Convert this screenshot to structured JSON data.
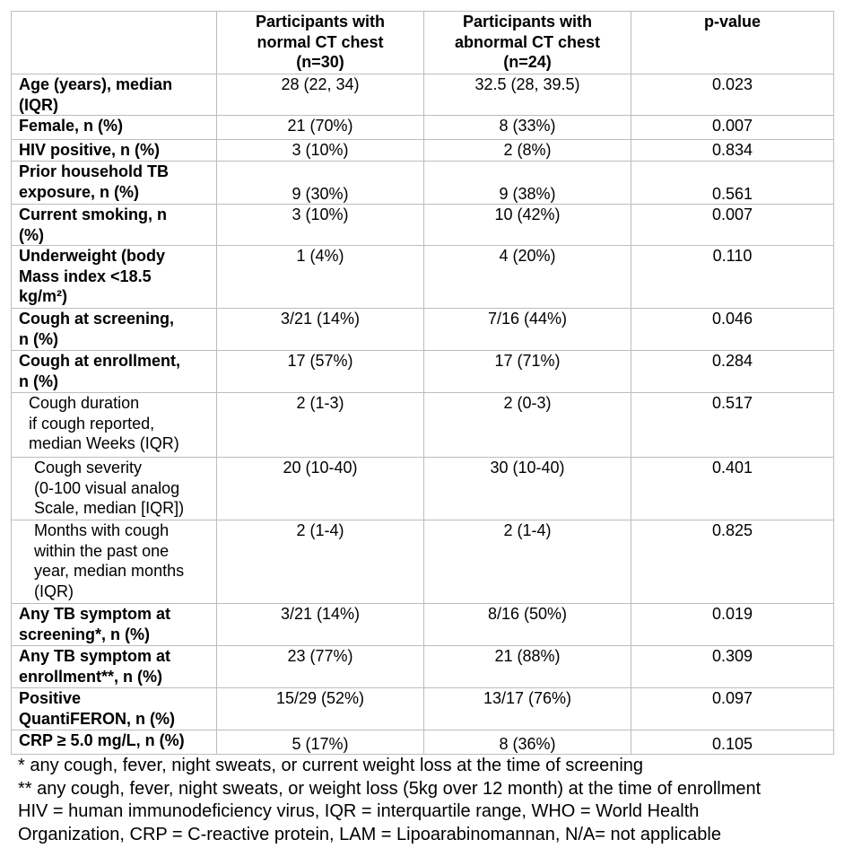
{
  "table": {
    "header": [
      "",
      "Participants with\nnormal CT chest\n(n=30)",
      "Participants with\nabnormal CT chest\n(n=24)",
      "p-value"
    ],
    "rows": [
      [
        "Age (years), median\n(IQR)",
        "28 (22, 34)",
        "32.5 (28, 39.5)",
        "0.023"
      ],
      [
        "Female, n (%)",
        "21 (70%)",
        "8 (33%)",
        "0.007"
      ],
      [
        "HIV positive, n (%)",
        "3 (10%)",
        "2 (8%)",
        "0.834"
      ],
      [
        "Prior household TB\nexposure, n (%)",
        "9 (30%)",
        "9 (38%)",
        "0.561"
      ],
      [
        "Current smoking, n\n(%)",
        "3 (10%)",
        "10 (42%)",
        "0.007"
      ],
      [
        "Underweight (body\nMass index <18.5\nkg/m²)",
        "1 (4%)",
        "4 (20%)",
        "0.110"
      ],
      [
        "Cough at screening,\nn (%)",
        "3/21 (14%)",
        "7/16 (44%)",
        "0.046"
      ],
      [
        "Cough at enrollment,\nn (%)",
        "17 (57%)",
        "17 (71%)",
        "0.284"
      ],
      [
        "Cough duration\nif cough reported,\nmedian Weeks (IQR)",
        "2 (1-3)",
        "2 (0-3)",
        "0.517"
      ],
      [
        "Cough severity\n(0-100 visual analog\nScale, median [IQR])",
        "20 (10-40)",
        "30 (10-40)",
        "0.401"
      ],
      [
        "Months with cough\nwithin the past one\nyear, median months\n(IQR)",
        "2 (1-4)",
        "2 (1-4)",
        "0.825"
      ],
      [
        "Any TB symptom at\nscreening*, n (%)",
        "3/21 (14%)",
        "8/16 (50%)",
        "0.019"
      ],
      [
        "Any TB symptom at\nenrollment**, n (%)",
        "23 (77%)",
        "21 (88%)",
        "0.309"
      ],
      [
        "Positive\nQuantiFERON, n (%)",
        "15/29 (52%)",
        "13/17 (76%)",
        "0.097"
      ],
      [
        "CRP ≥ 5.0 mg/L, n (%)",
        "5 (17%)",
        "8 (36%)",
        "0.105"
      ]
    ]
  },
  "footnotes": [
    "* any cough, fever, night sweats, or current weight loss at the time of screening",
    "** any cough, fever, night sweats, or weight loss (5kg over 12 month) at the time of enrollment",
    "HIV = human immunodeficiency virus, IQR = interquartile range, WHO = World Health\nOrganization, CRP = C-reactive protein, LAM = Lipoarabinomannan, N/A= not applicable"
  ]
}
